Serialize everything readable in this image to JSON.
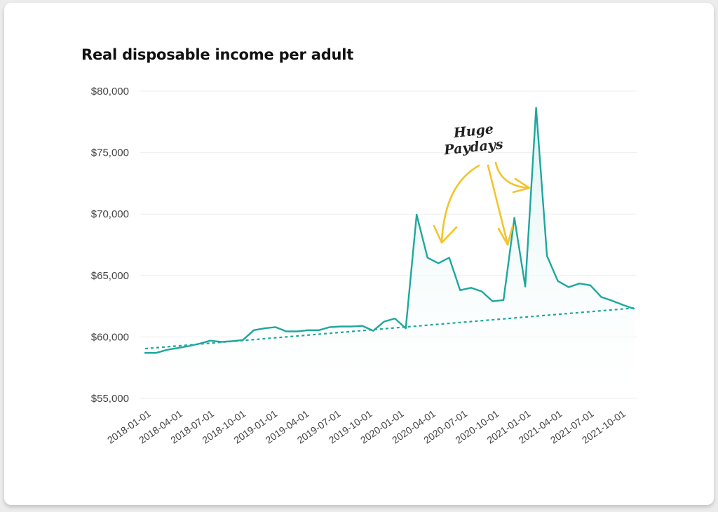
{
  "chart_data": {
    "type": "line",
    "title": "Real disposable income per adult",
    "xlabel": "",
    "ylabel": "",
    "ylim": [
      55000,
      80000
    ],
    "yticks": [
      "$55,000",
      "$60,000",
      "$65,000",
      "$70,000",
      "$75,000",
      "$80,000"
    ],
    "ytick_values": [
      55000,
      60000,
      65000,
      70000,
      75000,
      80000
    ],
    "xticks": [
      "2018-01-01",
      "2018-04-01",
      "2018-07-01",
      "2018-10-01",
      "2019-01-01",
      "2019-04-01",
      "2019-07-01",
      "2019-10-01",
      "2020-01-01",
      "2020-04-01",
      "2020-07-01",
      "2020-10-01",
      "2021-01-01",
      "2021-04-01",
      "2021-07-01",
      "2021-10-01"
    ],
    "grid": true,
    "series": [
      {
        "values": [
          58700,
          58700,
          58950,
          59100,
          59250,
          59450,
          59700,
          59600,
          59650,
          59750,
          60550,
          60700,
          60800,
          60450,
          60450,
          60550,
          60550,
          60800,
          60850,
          60850,
          60900,
          60500,
          61250,
          61500,
          60700,
          69950,
          66450,
          66000,
          66450,
          63800,
          64000,
          63700,
          62900,
          63000,
          69700,
          64100,
          78650,
          66600,
          64550,
          64050,
          64350,
          64200,
          63250,
          62950,
          62600,
          62300
        ]
      },
      {
        "style": "trend",
        "values": [
          59050,
          62350
        ]
      }
    ],
    "annotation": {
      "lines": [
        "Huge",
        "Paydays"
      ]
    },
    "colors": {
      "line": "#1ea79e",
      "fill": "#e6f6f6",
      "arrow": "#f3c42c",
      "grid": "#eeeeee"
    }
  }
}
